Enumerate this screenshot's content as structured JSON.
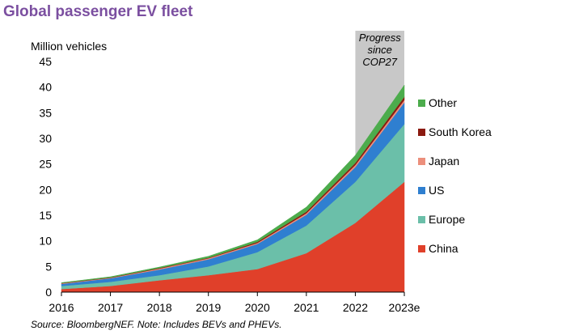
{
  "title": "Global passenger EV fleet",
  "source": "Source: BloombergNEF. Note: Includes BEVs and PHEVs.",
  "chart_data": {
    "type": "area",
    "stacked": true,
    "ylabel": "Million vehicles",
    "ylim": [
      0,
      45
    ],
    "yticks": [
      0,
      5,
      10,
      15,
      20,
      25,
      30,
      35,
      40,
      45
    ],
    "x": [
      "2016",
      "2017",
      "2018",
      "2019",
      "2020",
      "2021",
      "2022",
      "2023e"
    ],
    "annotation": {
      "lines": [
        "Progress",
        "since",
        "COP27"
      ],
      "x_from": "2022",
      "x_to": "2023e",
      "shade": "#c8c8c8"
    },
    "series": [
      {
        "name": "China",
        "color": "#e0402a",
        "values": [
          0.6,
          1.2,
          2.3,
          3.3,
          4.5,
          7.6,
          13.5,
          21.5
        ]
      },
      {
        "name": "Europe",
        "color": "#6bbfa9",
        "values": [
          0.6,
          0.8,
          1.0,
          1.7,
          3.3,
          5.4,
          8.0,
          11.3
        ]
      },
      {
        "name": "US",
        "color": "#2f7fd0",
        "values": [
          0.4,
          0.7,
          1.1,
          1.4,
          1.6,
          2.1,
          2.9,
          4.2
        ]
      },
      {
        "name": "Japan",
        "color": "#ec8f7c",
        "values": [
          0.1,
          0.1,
          0.2,
          0.2,
          0.2,
          0.3,
          0.4,
          0.5
        ]
      },
      {
        "name": "South Korea",
        "color": "#8b1a10",
        "values": [
          0.05,
          0.05,
          0.1,
          0.1,
          0.2,
          0.3,
          0.4,
          0.6
        ]
      },
      {
        "name": "Other",
        "color": "#4cac4c",
        "values": [
          0.1,
          0.15,
          0.2,
          0.3,
          0.4,
          0.9,
          1.5,
          2.3
        ]
      }
    ],
    "legend_position": "right"
  }
}
